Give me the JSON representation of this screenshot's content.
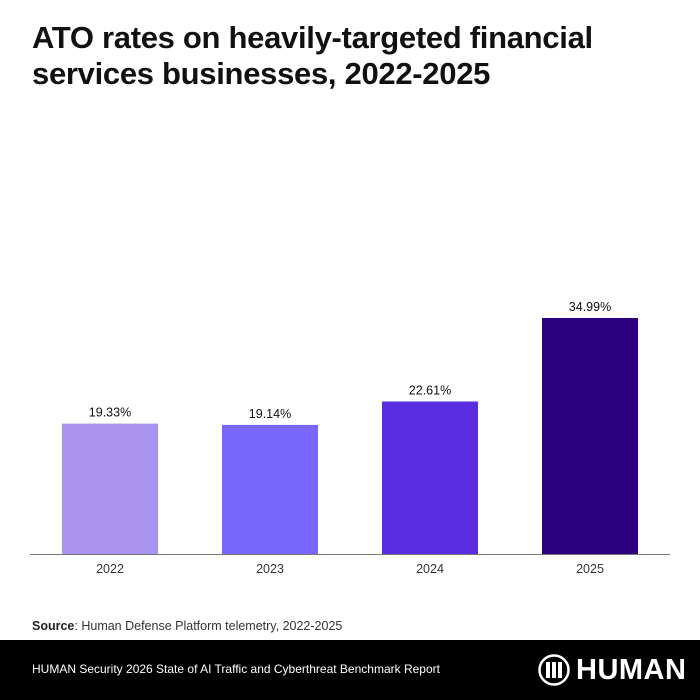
{
  "chart_data": {
    "type": "bar",
    "title": "ATO rates on heavily-targeted financial services businesses, 2022-2025",
    "categories": [
      "2022",
      "2023",
      "2024",
      "2025"
    ],
    "values": [
      19.33,
      19.14,
      22.61,
      34.99
    ],
    "value_labels": [
      "19.33%",
      "19.14%",
      "22.61%",
      "34.99%"
    ],
    "colors": [
      "#a894ee",
      "#7966fc",
      "#5a2de0",
      "#2c007f"
    ],
    "grid": false
  },
  "source": {
    "label": "Source",
    "text": ": Human Defense Platform telemetry, 2022-2025"
  },
  "footer": {
    "text": "HUMAN Security 2026 State of AI Traffic and Cyberthreat Benchmark Report",
    "logo": "HUMAN"
  }
}
